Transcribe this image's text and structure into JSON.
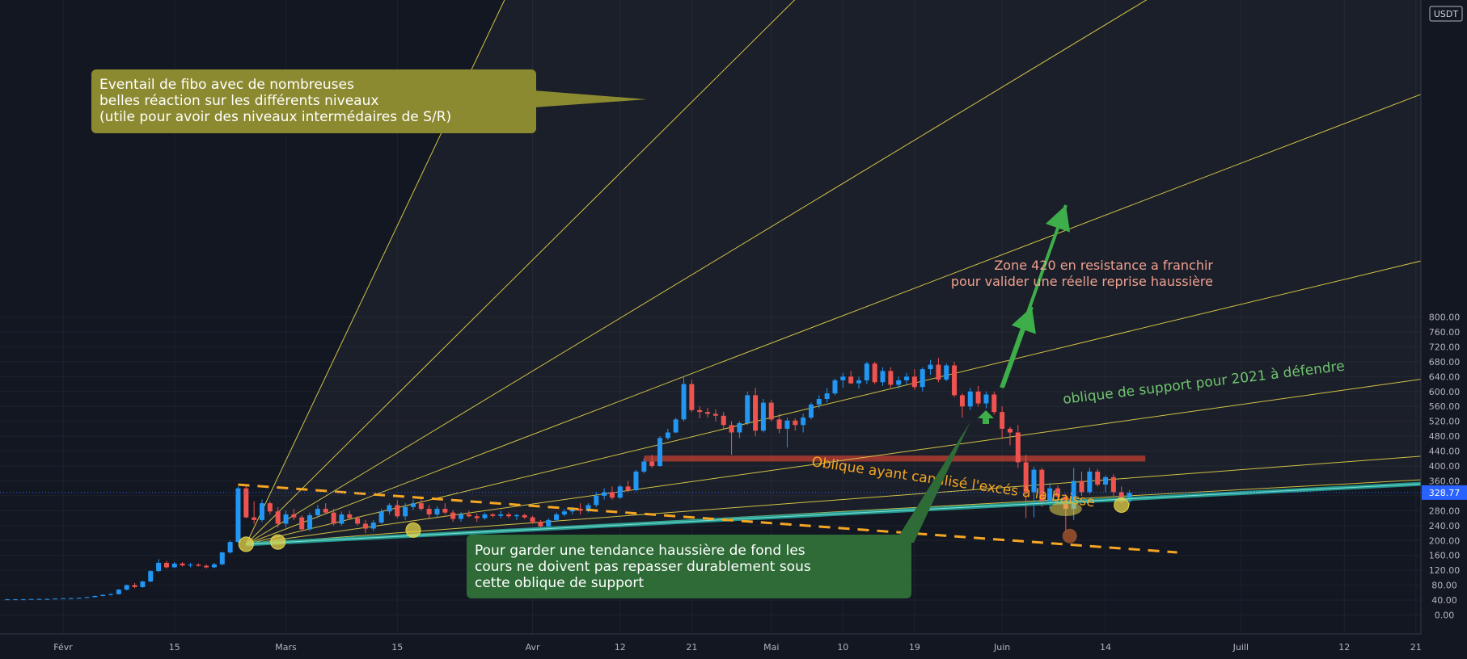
{
  "currency": "USDT",
  "price": {
    "label": "328.77",
    "value": 328.77,
    "color": "#2962ff"
  },
  "colors": {
    "bull": "#2196f3",
    "bear": "#ef5350",
    "fan": "#e6d44a",
    "support": "#26a69a",
    "orange": "#f5a623",
    "zone": "#c0392b"
  },
  "chart_data": {
    "type": "candlestick",
    "y_ticks": [
      "0.00",
      "40.00",
      "80.00",
      "120.00",
      "160.00",
      "200.00",
      "240.00",
      "280.00",
      "320.00",
      "360.00",
      "400.00",
      "440.00",
      "480.00",
      "520.00",
      "560.00",
      "600.00",
      "640.00",
      "680.00",
      "720.00",
      "760.00",
      "800.00"
    ],
    "ylim": [
      0,
      800
    ],
    "x_ticks": [
      "Févr",
      "15",
      "Mars",
      "15",
      "Avr",
      "12",
      "21",
      "Mai",
      "10",
      "19",
      "Juin",
      "14",
      "Juill",
      "12",
      "21"
    ],
    "x_tick_days": [
      0,
      14,
      28,
      42,
      59,
      70,
      79,
      89,
      98,
      107,
      118,
      131,
      148,
      161,
      170
    ],
    "x_range_days": [
      -7,
      176
    ],
    "candles": [
      [
        -7,
        42,
        43,
        41,
        42
      ],
      [
        -6,
        42,
        43,
        41,
        42
      ],
      [
        -5,
        42,
        43,
        41,
        42
      ],
      [
        -4,
        42,
        43,
        41,
        43
      ],
      [
        -3,
        43,
        44,
        42,
        43
      ],
      [
        -2,
        43,
        44,
        42,
        43
      ],
      [
        -1,
        43,
        44,
        42,
        44
      ],
      [
        0,
        44,
        45,
        43,
        45
      ],
      [
        1,
        45,
        46,
        44,
        45
      ],
      [
        2,
        45,
        47,
        44,
        46
      ],
      [
        3,
        46,
        48,
        45,
        48
      ],
      [
        4,
        48,
        52,
        47,
        51
      ],
      [
        5,
        51,
        55,
        50,
        54
      ],
      [
        6,
        54,
        58,
        52,
        56
      ],
      [
        7,
        56,
        70,
        55,
        68
      ],
      [
        8,
        68,
        82,
        66,
        80
      ],
      [
        9,
        80,
        86,
        72,
        75
      ],
      [
        10,
        75,
        92,
        73,
        90
      ],
      [
        11,
        90,
        120,
        88,
        118
      ],
      [
        12,
        118,
        150,
        115,
        140
      ],
      [
        13,
        140,
        145,
        125,
        128
      ],
      [
        14,
        128,
        142,
        126,
        138
      ],
      [
        15,
        138,
        142,
        130,
        133
      ],
      [
        16,
        133,
        140,
        128,
        135
      ],
      [
        17,
        135,
        139,
        130,
        132
      ],
      [
        18,
        132,
        136,
        125,
        128
      ],
      [
        19,
        128,
        140,
        126,
        136
      ],
      [
        20,
        136,
        170,
        134,
        168
      ],
      [
        21,
        168,
        200,
        165,
        196
      ],
      [
        22,
        196,
        345,
        194,
        340
      ],
      [
        23,
        340,
        345,
        260,
        262
      ],
      [
        24,
        262,
        305,
        245,
        255
      ],
      [
        25,
        255,
        310,
        250,
        300
      ],
      [
        26,
        300,
        305,
        270,
        278
      ],
      [
        27,
        278,
        290,
        235,
        245
      ],
      [
        28,
        245,
        280,
        235,
        270
      ],
      [
        29,
        270,
        285,
        255,
        262
      ],
      [
        30,
        262,
        268,
        225,
        230
      ],
      [
        31,
        230,
        275,
        225,
        268
      ],
      [
        32,
        268,
        295,
        260,
        285
      ],
      [
        33,
        285,
        300,
        270,
        275
      ],
      [
        34,
        275,
        285,
        240,
        245
      ],
      [
        35,
        245,
        278,
        240,
        270
      ],
      [
        36,
        270,
        280,
        255,
        260
      ],
      [
        37,
        260,
        265,
        240,
        245
      ],
      [
        38,
        245,
        255,
        220,
        232
      ],
      [
        39,
        232,
        255,
        225,
        248
      ],
      [
        40,
        248,
        285,
        245,
        278
      ],
      [
        41,
        278,
        300,
        270,
        295
      ],
      [
        42,
        295,
        308,
        260,
        265
      ],
      [
        43,
        265,
        300,
        255,
        290
      ],
      [
        44,
        290,
        310,
        282,
        300
      ],
      [
        45,
        300,
        315,
        280,
        285
      ],
      [
        46,
        285,
        295,
        260,
        270
      ],
      [
        47,
        270,
        292,
        262,
        285
      ],
      [
        48,
        285,
        300,
        270,
        275
      ],
      [
        49,
        275,
        282,
        250,
        258
      ],
      [
        50,
        258,
        276,
        250,
        270
      ],
      [
        51,
        270,
        280,
        262,
        265
      ],
      [
        52,
        265,
        272,
        250,
        260
      ],
      [
        53,
        260,
        275,
        256,
        270
      ],
      [
        54,
        270,
        274,
        262,
        266
      ],
      [
        55,
        266,
        280,
        260,
        270
      ],
      [
        56,
        270,
        275,
        260,
        265
      ],
      [
        57,
        265,
        272,
        255,
        268
      ],
      [
        58,
        268,
        272,
        258,
        262
      ],
      [
        59,
        262,
        266,
        245,
        250
      ],
      [
        60,
        250,
        255,
        230,
        238
      ],
      [
        61,
        238,
        260,
        232,
        255
      ],
      [
        62,
        255,
        275,
        250,
        270
      ],
      [
        63,
        270,
        285,
        265,
        278
      ],
      [
        64,
        278,
        290,
        270,
        285
      ],
      [
        65,
        285,
        300,
        270,
        280
      ],
      [
        66,
        280,
        300,
        275,
        295
      ],
      [
        67,
        295,
        330,
        290,
        320
      ],
      [
        68,
        320,
        340,
        310,
        330
      ],
      [
        69,
        330,
        345,
        310,
        315
      ],
      [
        70,
        315,
        350,
        312,
        345
      ],
      [
        71,
        345,
        360,
        330,
        335
      ],
      [
        72,
        335,
        390,
        332,
        385
      ],
      [
        73,
        385,
        420,
        380,
        412
      ],
      [
        74,
        412,
        430,
        395,
        400
      ],
      [
        75,
        400,
        480,
        398,
        475
      ],
      [
        76,
        475,
        500,
        470,
        490
      ],
      [
        77,
        490,
        530,
        488,
        525
      ],
      [
        78,
        525,
        640,
        520,
        620
      ],
      [
        79,
        620,
        632,
        545,
        550
      ],
      [
        80,
        550,
        560,
        528,
        545
      ],
      [
        81,
        545,
        556,
        530,
        540
      ],
      [
        82,
        540,
        552,
        520,
        535
      ],
      [
        83,
        535,
        545,
        500,
        510
      ],
      [
        84,
        510,
        520,
        430,
        490
      ],
      [
        85,
        490,
        520,
        475,
        515
      ],
      [
        86,
        515,
        600,
        510,
        590
      ],
      [
        87,
        590,
        610,
        480,
        495
      ],
      [
        88,
        495,
        580,
        490,
        570
      ],
      [
        89,
        570,
        578,
        520,
        525
      ],
      [
        90,
        525,
        540,
        488,
        500
      ],
      [
        91,
        500,
        530,
        450,
        522
      ],
      [
        92,
        522,
        528,
        495,
        510
      ],
      [
        93,
        510,
        540,
        490,
        530
      ],
      [
        94,
        530,
        570,
        525,
        565
      ],
      [
        95,
        565,
        590,
        555,
        580
      ],
      [
        96,
        580,
        610,
        570,
        595
      ],
      [
        97,
        595,
        635,
        590,
        630
      ],
      [
        98,
        630,
        650,
        610,
        640
      ],
      [
        99,
        640,
        655,
        620,
        622
      ],
      [
        100,
        622,
        640,
        608,
        630
      ],
      [
        101,
        630,
        680,
        620,
        675
      ],
      [
        102,
        675,
        680,
        620,
        625
      ],
      [
        103,
        625,
        665,
        615,
        655
      ],
      [
        104,
        655,
        665,
        610,
        618
      ],
      [
        105,
        618,
        640,
        608,
        630
      ],
      [
        106,
        630,
        650,
        620,
        640
      ],
      [
        107,
        640,
        660,
        605,
        612
      ],
      [
        108,
        612,
        665,
        600,
        660
      ],
      [
        109,
        660,
        685,
        645,
        672
      ],
      [
        110,
        672,
        690,
        625,
        632
      ],
      [
        111,
        632,
        675,
        628,
        670
      ],
      [
        112,
        670,
        680,
        585,
        590
      ],
      [
        113,
        590,
        595,
        530,
        560
      ],
      [
        114,
        560,
        610,
        550,
        600
      ],
      [
        115,
        600,
        615,
        560,
        568
      ],
      [
        116,
        568,
        600,
        555,
        592
      ],
      [
        117,
        592,
        600,
        538,
        545
      ],
      [
        118,
        545,
        560,
        475,
        500
      ],
      [
        119,
        500,
        505,
        455,
        490
      ],
      [
        120,
        490,
        510,
        395,
        410
      ],
      [
        121,
        410,
        430,
        260,
        330
      ],
      [
        122,
        330,
        398,
        262,
        390
      ],
      [
        123,
        390,
        395,
        290,
        300
      ],
      [
        124,
        300,
        355,
        285,
        340
      ],
      [
        125,
        340,
        348,
        300,
        318
      ],
      [
        126,
        318,
        325,
        220,
        285
      ],
      [
        127,
        285,
        395,
        255,
        360
      ],
      [
        128,
        360,
        385,
        320,
        330
      ],
      [
        129,
        330,
        395,
        325,
        385
      ],
      [
        130,
        385,
        392,
        345,
        350
      ],
      [
        131,
        350,
        375,
        330,
        370
      ],
      [
        132,
        370,
        378,
        320,
        330
      ],
      [
        133,
        330,
        345,
        300,
        305
      ],
      [
        134,
        305,
        335,
        295,
        328
      ]
    ],
    "annotations": [
      {
        "text": "Eventail de fibo avec de nombreuses\nbelles réaction sur les différents niveaux\n(utile pour avoir des niveaux intermédaires de S/R)",
        "color": "#8c8a30"
      },
      {
        "text": "Zone 420 en resistance a franchir\npour valider une réelle reprise haussière",
        "color": "#f0a090"
      },
      {
        "text": "oblique de support pour 2021 à défendre",
        "color": "#6fc46f"
      },
      {
        "text": "Oblique ayant canalisé l'excés à la baisse",
        "color": "#f5a623"
      },
      {
        "text": "Pour garder une tendance haussière de fond les\ncours ne doivent pas repasser durablement sous\ncette oblique de support",
        "color": "#2e6b36"
      }
    ],
    "resistance_zone": [
      412,
      428
    ],
    "fan_origin": [
      23,
      190
    ],
    "fan_lines": [
      [
        33,
        640
      ],
      [
        48,
        720
      ],
      [
        59,
        655
      ],
      [
        78,
        640
      ],
      [
        89,
        530
      ],
      [
        108,
        445
      ],
      [
        123,
        350
      ],
      [
        134,
        320
      ]
    ],
    "support_line": [
      [
        23,
        190
      ],
      [
        176,
        358
      ]
    ],
    "orange_line": [
      [
        22,
        350
      ],
      [
        140,
        168
      ]
    ]
  }
}
